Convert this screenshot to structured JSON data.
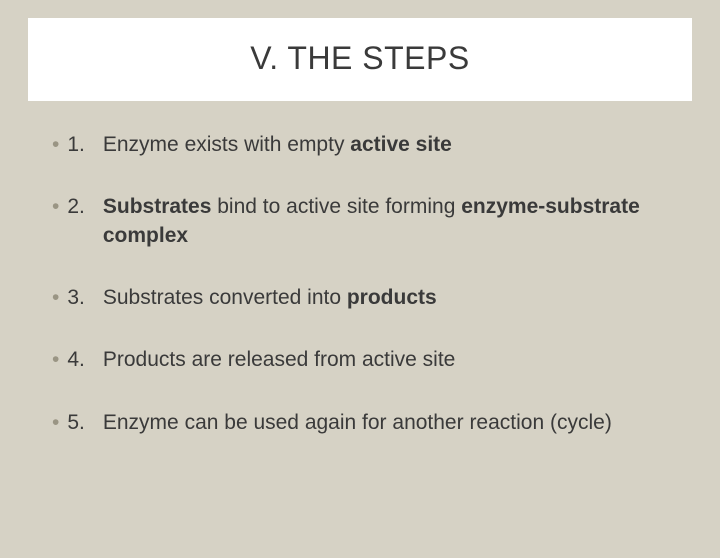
{
  "slide": {
    "title": "V. THE STEPS",
    "background_color": "#d6d2c5",
    "title_box_bg": "#ffffff",
    "title_fontsize": 32,
    "body_fontsize": 21,
    "bullet_color": "#9a9584",
    "text_color": "#3a3a3a",
    "items": [
      {
        "num": "1.",
        "html": "Enzyme exists with empty <b>active site</b>"
      },
      {
        "num": "2.",
        "html": "<b>Substrates</b> bind to active site forming <b>enzyme-substrate complex</b>"
      },
      {
        "num": "3.",
        "html": "Substrates converted into <b>products</b>"
      },
      {
        "num": "4.",
        "html": "Products are released from active site"
      },
      {
        "num": "5.",
        "html": "Enzyme can be used again for another reaction (cycle)"
      }
    ]
  }
}
